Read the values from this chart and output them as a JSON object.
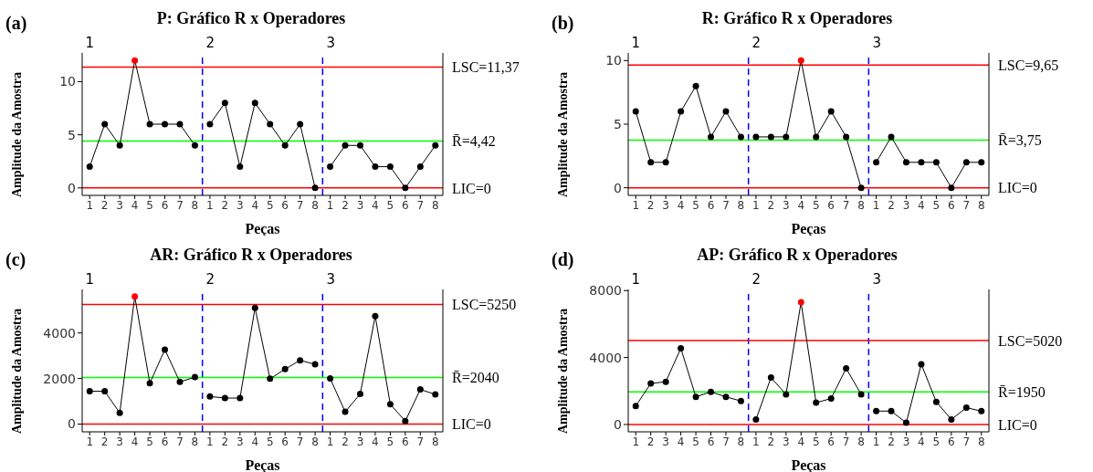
{
  "chart_data": [
    {
      "type": "line",
      "title": "P: Gráfico R x Operadores",
      "xlabel": "Peças",
      "ylabel": "Amplitude da Amostra",
      "annotations": [
        "(a)",
        "1",
        "2",
        "3"
      ],
      "marker": "circle",
      "grid": false,
      "legend": false,
      "categories": [
        "1",
        "2",
        "3",
        "4",
        "5",
        "6",
        "7",
        "8",
        "1",
        "2",
        "3",
        "4",
        "5",
        "6",
        "7",
        "8",
        "1",
        "2",
        "3",
        "4",
        "5",
        "6",
        "7",
        "8"
      ],
      "ylim": [
        -0.7,
        12.7
      ],
      "yticks": [
        0,
        5,
        10
      ],
      "series": [
        {
          "color": "#000000",
          "values": [
            2,
            6,
            4,
            12,
            6,
            6,
            6,
            4,
            null,
            null,
            null,
            null,
            null,
            null,
            null,
            null,
            null,
            null,
            null,
            null,
            null,
            null,
            null,
            null
          ],
          "colors": [
            "#000000",
            "#000000",
            "#000000",
            "#ff0000",
            "#000000",
            "#000000",
            "#000000",
            "#000000",
            null,
            null,
            null,
            null,
            null,
            null,
            null,
            null,
            null,
            null,
            null,
            null,
            null,
            null,
            null,
            null
          ]
        },
        {
          "color": "#000000",
          "values": [
            null,
            null,
            null,
            null,
            null,
            null,
            null,
            null,
            6,
            8,
            2,
            8,
            6,
            4,
            6,
            0,
            null,
            null,
            null,
            null,
            null,
            null,
            null,
            null
          ]
        },
        {
          "color": "#000000",
          "values": [
            null,
            null,
            null,
            null,
            null,
            null,
            null,
            null,
            null,
            null,
            null,
            null,
            null,
            null,
            null,
            null,
            2,
            4,
            4,
            2,
            2,
            0,
            2,
            4
          ]
        }
      ],
      "ref_lines": [
        {
          "axis": "y",
          "value": 11.37,
          "label": "LSC=11,37",
          "color": "#ff0000"
        },
        {
          "axis": "y",
          "value": 4.42,
          "label": "R̄=4,42",
          "color": "#00ff00"
        },
        {
          "axis": "y",
          "value": 0,
          "label": "LIC=0",
          "color": "#ff0000"
        }
      ]
    },
    {
      "type": "line",
      "title": "R: Gráfico R x Operadores",
      "xlabel": "Peças",
      "ylabel": "Amplitude da Amostra",
      "annotations": [
        "(b)",
        "1",
        "2",
        "3"
      ],
      "marker": "circle",
      "grid": false,
      "legend": false,
      "categories": [
        "1",
        "2",
        "3",
        "4",
        "5",
        "6",
        "7",
        "8",
        "1",
        "2",
        "3",
        "4",
        "5",
        "6",
        "7",
        "8",
        "1",
        "2",
        "3",
        "4",
        "5",
        "6",
        "7",
        "8"
      ],
      "ylim": [
        -0.6,
        10.6
      ],
      "yticks": [
        0,
        5,
        10
      ],
      "series": [
        {
          "color": "#000000",
          "values": [
            6,
            2,
            2,
            6,
            8,
            4,
            6,
            4,
            null,
            null,
            null,
            null,
            null,
            null,
            null,
            null,
            null,
            null,
            null,
            null,
            null,
            null,
            null,
            null
          ]
        },
        {
          "color": "#000000",
          "values": [
            null,
            null,
            null,
            null,
            null,
            null,
            null,
            null,
            4,
            4,
            4,
            10,
            4,
            6,
            4,
            0,
            null,
            null,
            null,
            null,
            null,
            null,
            null,
            null
          ],
          "colors": [
            null,
            null,
            null,
            null,
            null,
            null,
            null,
            null,
            "#000000",
            "#000000",
            "#000000",
            "#ff0000",
            "#000000",
            "#000000",
            "#000000",
            "#000000",
            null,
            null,
            null,
            null,
            null,
            null,
            null,
            null
          ]
        },
        {
          "color": "#000000",
          "values": [
            null,
            null,
            null,
            null,
            null,
            null,
            null,
            null,
            null,
            null,
            null,
            null,
            null,
            null,
            null,
            null,
            2,
            4,
            2,
            2,
            2,
            0,
            2,
            2
          ]
        }
      ],
      "ref_lines": [
        {
          "axis": "y",
          "value": 9.65,
          "label": "LSC=9,65",
          "color": "#ff0000"
        },
        {
          "axis": "y",
          "value": 3.75,
          "label": "R̄=3,75",
          "color": "#00ff00"
        },
        {
          "axis": "y",
          "value": 0,
          "label": "LIC=0",
          "color": "#ff0000"
        }
      ]
    },
    {
      "type": "line",
      "title": "AR: Gráfico R x Operadores",
      "xlabel": "Peças",
      "ylabel": "Amplitude da Amostra",
      "annotations": [
        "(c)",
        "1",
        "2",
        "3"
      ],
      "marker": "circle",
      "grid": false,
      "legend": false,
      "categories": [
        "1",
        "2",
        "3",
        "4",
        "5",
        "6",
        "7",
        "8",
        "1",
        "2",
        "3",
        "4",
        "5",
        "6",
        "7",
        "8",
        "1",
        "2",
        "3",
        "4",
        "5",
        "6",
        "7",
        "8"
      ],
      "ylim": [
        -340,
        5910
      ],
      "yticks": [
        0,
        2000,
        4000
      ],
      "series": [
        {
          "color": "#000000",
          "values": [
            1440,
            1440,
            490,
            5600,
            1790,
            3270,
            1850,
            2060,
            null,
            null,
            null,
            null,
            null,
            null,
            null,
            null,
            null,
            null,
            null,
            null,
            null,
            null,
            null,
            null
          ],
          "colors": [
            "#000000",
            "#000000",
            "#000000",
            "#ff0000",
            "#000000",
            "#000000",
            "#000000",
            "#000000",
            null,
            null,
            null,
            null,
            null,
            null,
            null,
            null,
            null,
            null,
            null,
            null,
            null,
            null,
            null,
            null
          ]
        },
        {
          "color": "#000000",
          "values": [
            null,
            null,
            null,
            null,
            null,
            null,
            null,
            null,
            1210,
            1140,
            1140,
            5100,
            1990,
            2410,
            2800,
            2620,
            null,
            null,
            null,
            null,
            null,
            null,
            null,
            null
          ]
        },
        {
          "color": "#000000",
          "values": [
            null,
            null,
            null,
            null,
            null,
            null,
            null,
            null,
            null,
            null,
            null,
            null,
            null,
            null,
            null,
            null,
            2000,
            540,
            1320,
            4740,
            870,
            130,
            1520,
            1300
          ]
        }
      ],
      "ref_lines": [
        {
          "axis": "y",
          "value": 5250,
          "label": "LSC=5250",
          "color": "#ff0000"
        },
        {
          "axis": "y",
          "value": 2040,
          "label": "R̄=2040",
          "color": "#00ff00"
        },
        {
          "axis": "y",
          "value": 0,
          "label": "LIC=0",
          "color": "#ff0000"
        }
      ]
    },
    {
      "type": "line",
      "title": "AP: Gráfico R x Operadores",
      "xlabel": "Peças",
      "ylabel": "Amplitude da Amostra",
      "annotations": [
        "(d)",
        "1",
        "2",
        "3"
      ],
      "marker": "circle",
      "grid": false,
      "legend": false,
      "categories": [
        "1",
        "2",
        "3",
        "4",
        "5",
        "6",
        "7",
        "8",
        "1",
        "2",
        "3",
        "4",
        "5",
        "6",
        "7",
        "8",
        "1",
        "2",
        "3",
        "4",
        "5",
        "6",
        "7",
        "8"
      ],
      "ylim": [
        -440,
        8070
      ],
      "yticks": [
        0,
        4000,
        8000
      ],
      "series": [
        {
          "color": "#000000",
          "values": [
            1100,
            2450,
            2550,
            4550,
            1650,
            1950,
            1650,
            1400,
            null,
            null,
            null,
            null,
            null,
            null,
            null,
            null,
            null,
            null,
            null,
            null,
            null,
            null,
            null,
            null
          ]
        },
        {
          "color": "#000000",
          "values": [
            null,
            null,
            null,
            null,
            null,
            null,
            null,
            null,
            300,
            2800,
            1800,
            7300,
            1300,
            1550,
            3350,
            1800,
            null,
            null,
            null,
            null,
            null,
            null,
            null,
            null
          ],
          "colors": [
            null,
            null,
            null,
            null,
            null,
            null,
            null,
            null,
            "#000000",
            "#000000",
            "#000000",
            "#ff0000",
            "#000000",
            "#000000",
            "#000000",
            "#000000",
            null,
            null,
            null,
            null,
            null,
            null,
            null,
            null
          ]
        },
        {
          "color": "#000000",
          "values": [
            null,
            null,
            null,
            null,
            null,
            null,
            null,
            null,
            null,
            null,
            null,
            null,
            null,
            null,
            null,
            null,
            800,
            800,
            100,
            3600,
            1350,
            300,
            1000,
            800
          ]
        }
      ],
      "ref_lines": [
        {
          "axis": "y",
          "value": 5020,
          "label": "LSC=5020",
          "color": "#ff0000"
        },
        {
          "axis": "y",
          "value": 1950,
          "label": "R̄=1950",
          "color": "#00ff00"
        },
        {
          "axis": "y",
          "value": 0,
          "label": "LIC=0",
          "color": "#ff0000"
        }
      ]
    }
  ]
}
